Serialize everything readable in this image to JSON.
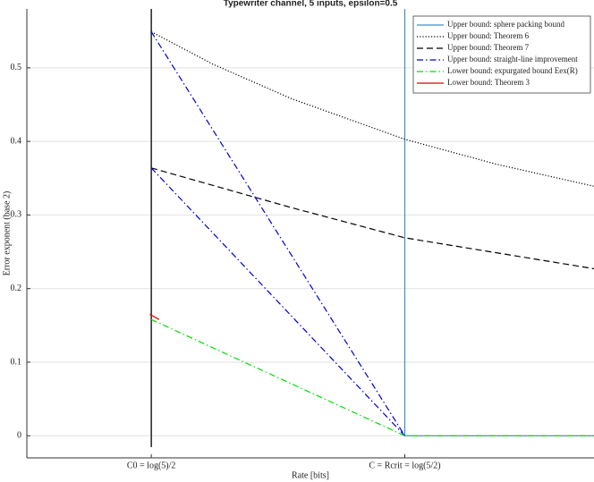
{
  "chart_data": {
    "type": "line",
    "title": "Typewriter channel, 5 inputs, epsilon=0.5",
    "xlabel": "Rate [bits]",
    "ylabel": "Error exponent (base 2)",
    "xlim": [
      1.082,
      1.442
    ],
    "ylim": [
      -0.03,
      0.58
    ],
    "xticks": [
      {
        "value": 1.161,
        "label": "C0 = log(5)/2"
      },
      {
        "value": 1.3219,
        "label": "C = Rcrit = log(5/2)"
      }
    ],
    "yticks": [
      0,
      0.1,
      0.2,
      0.3,
      0.4,
      0.5
    ],
    "grid": true,
    "legend": "upper right",
    "series": [
      {
        "name": "Upper bound: sphere packing bound",
        "color": "#3d8fc6",
        "linestyle": "solid",
        "x": [
          1.3219,
          1.3219,
          1.442
        ],
        "values": [
          0.58,
          0,
          0
        ]
      },
      {
        "name": "Upper bound: Theorem 6",
        "color": "#000000",
        "linestyle": "dotted",
        "x": [
          1.161,
          1.2,
          1.25,
          1.3219,
          1.38,
          1.442
        ],
        "values": [
          0.549,
          0.505,
          0.458,
          0.403,
          0.369,
          0.339
        ]
      },
      {
        "name": "Upper bound: Theorem 7",
        "color": "#000000",
        "linestyle": "dashed",
        "x": [
          1.161,
          1.25,
          1.3219,
          1.442
        ],
        "values": [
          0.364,
          0.31,
          0.269,
          0.227
        ]
      },
      {
        "name": "Upper bound: straight-line improvement",
        "color": "#0000cc",
        "linestyle": "dashdot",
        "x": [
          1.161,
          1.3219,
          null,
          1.161,
          1.3219
        ],
        "values": [
          0.549,
          0,
          null,
          0.364,
          0
        ]
      },
      {
        "name": "Lower bound: expurgated bound Eex(R)",
        "color": "#00dd00",
        "linestyle": "dashdot",
        "x": [
          1.161,
          1.3219,
          1.442
        ],
        "values": [
          0.158,
          0,
          0
        ]
      },
      {
        "name": "Lower bound: Theorem 3",
        "color": "#dd0000",
        "linestyle": "solid",
        "x": [
          1.16,
          1.166
        ],
        "values": [
          0.165,
          0.158
        ]
      }
    ]
  }
}
